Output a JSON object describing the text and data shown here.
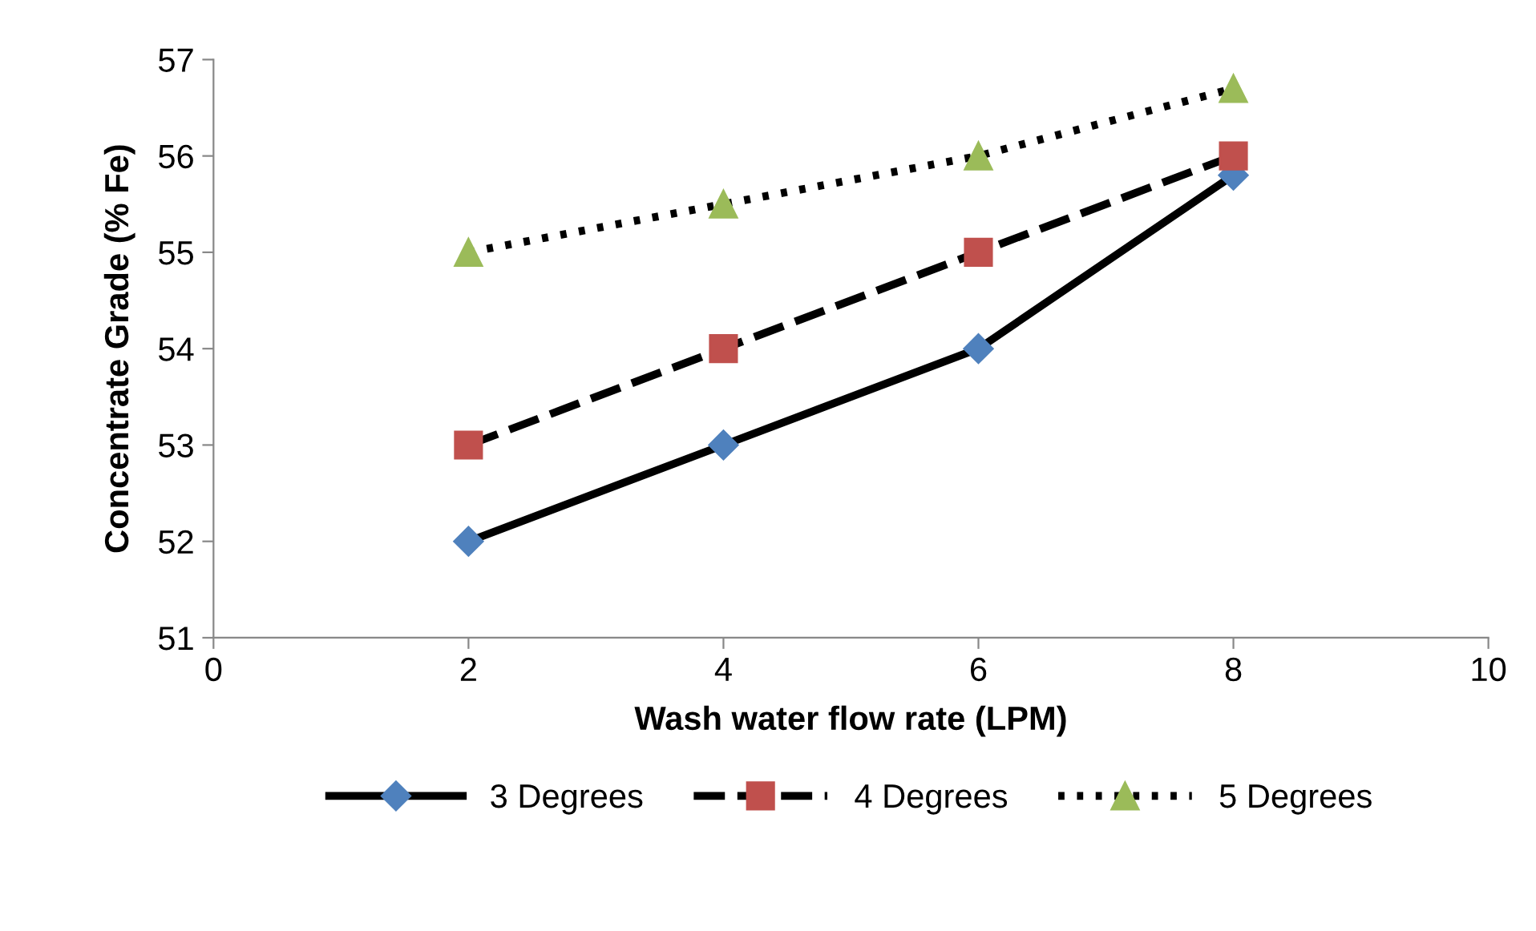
{
  "chart_data": {
    "type": "line",
    "xlabel": "Wash water flow rate (LPM)",
    "ylabel": "Concentrate Grade (% Fe)",
    "x": [
      2,
      4,
      6,
      8
    ],
    "xlim": [
      0,
      10
    ],
    "xticks": [
      0,
      2,
      4,
      6,
      8,
      10
    ],
    "ylim": [
      51,
      57
    ],
    "yticks": [
      51,
      52,
      53,
      54,
      55,
      56,
      57
    ],
    "grid": false,
    "legend": "bottom",
    "series": [
      {
        "name": "3 Degrees",
        "color": "#4f81bd",
        "values": [
          52,
          53,
          54,
          55.8
        ],
        "marker": "diamond",
        "line_style": "solid"
      },
      {
        "name": "4 Degrees",
        "color": "#c0504d",
        "values": [
          53,
          54,
          55,
          56
        ],
        "marker": "square",
        "line_style": "dashed"
      },
      {
        "name": "5 Degrees",
        "color": "#9bbb59",
        "values": [
          55,
          55.5,
          56,
          56.7
        ],
        "marker": "triangle",
        "line_style": "dotted"
      }
    ]
  }
}
